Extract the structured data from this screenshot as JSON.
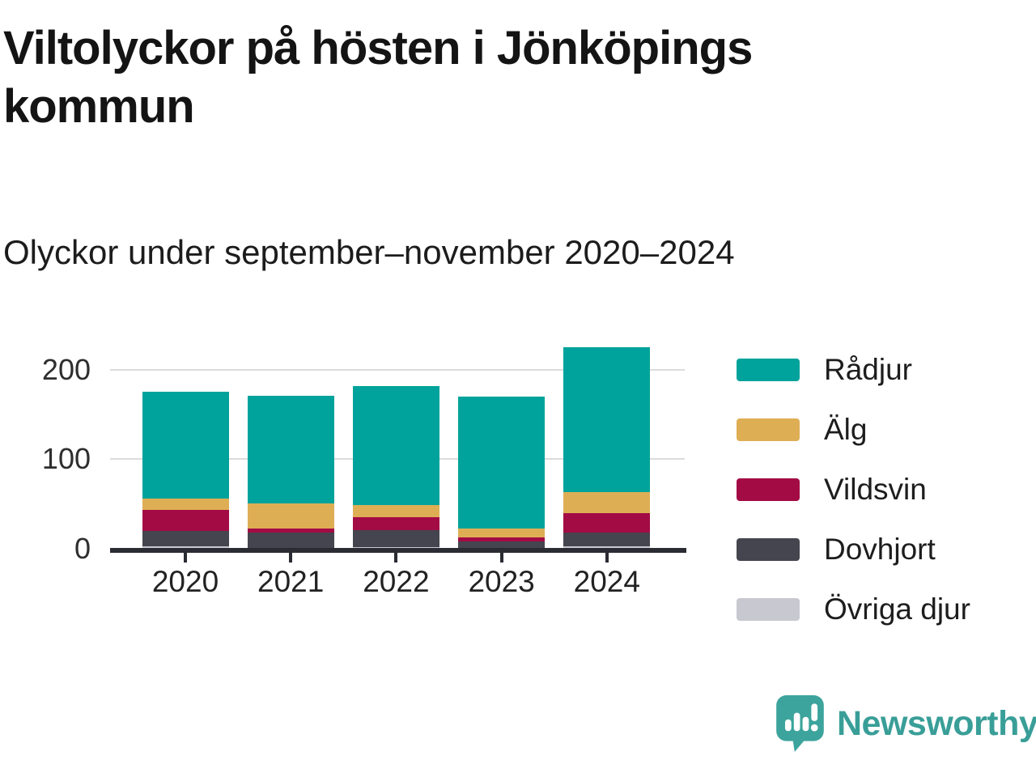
{
  "header": {
    "title": "Viltolyckor på hösten i Jönköpings kommun",
    "subtitle": "Olyckor under september–november 2020–2024"
  },
  "chart_data": {
    "type": "bar",
    "stacked": true,
    "categories": [
      "2020",
      "2021",
      "2022",
      "2023",
      "2024"
    ],
    "series": [
      {
        "name": "Rådjur",
        "color": "#00a39b",
        "values": [
          119,
          120,
          133,
          147,
          162
        ]
      },
      {
        "name": "Älg",
        "color": "#deae55",
        "values": [
          13,
          28,
          14,
          10,
          23
        ]
      },
      {
        "name": "Vildsvin",
        "color": "#a30b45",
        "values": [
          23,
          5,
          14,
          5,
          22
        ]
      },
      {
        "name": "Dovhjort",
        "color": "#45454f",
        "values": [
          17,
          18,
          19,
          8,
          15
        ]
      },
      {
        "name": "Övriga djur",
        "color": "#c8c8d0",
        "values": [
          3,
          0,
          2,
          0,
          3
        ]
      }
    ],
    "totals": [
      175,
      171,
      182,
      170,
      225
    ],
    "stack_order_bottom_to_top": [
      "Övriga djur",
      "Dovhjort",
      "Vildsvin",
      "Älg",
      "Rådjur"
    ],
    "xlabel": "",
    "ylabel": "",
    "ylim": [
      0,
      230
    ],
    "yticks": [
      0,
      100,
      200
    ],
    "grid": "horizontal",
    "legend_position": "right"
  },
  "footer": {
    "brand": "Newsworthy"
  },
  "colors": {
    "brand_teal": "#399e98",
    "axis_line": "#2b2b33",
    "gridline": "#dcdcdc",
    "text": "#1c1c1c"
  }
}
